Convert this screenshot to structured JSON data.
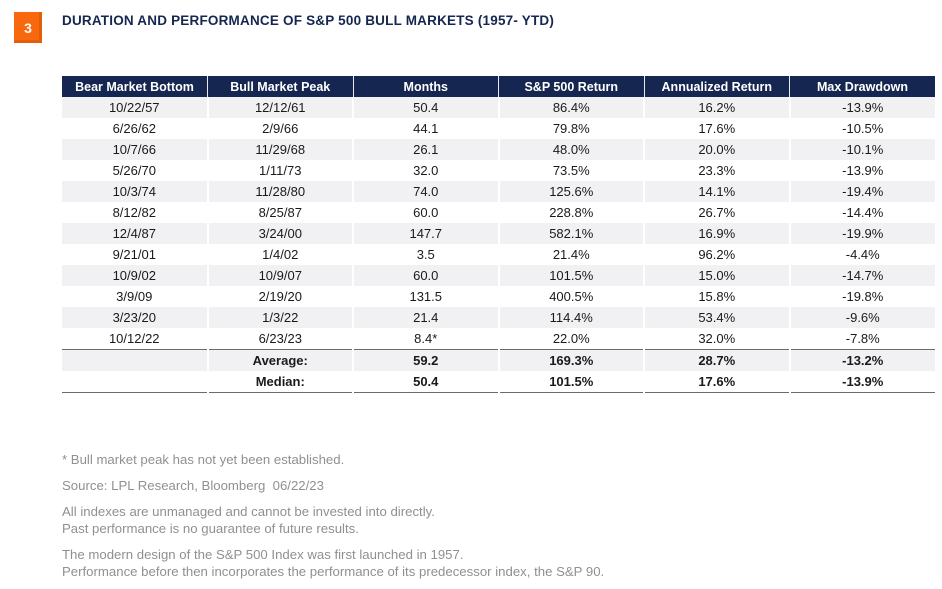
{
  "figure": {
    "badge": "3",
    "title": "DURATION AND PERFORMANCE OF S&P 500 BULL MARKETS (1957- YTD)"
  },
  "chart_data": {
    "type": "table",
    "title": "DURATION AND PERFORMANCE OF S&P 500 BULL MARKETS (1957- YTD)",
    "columns": [
      "Bear Market Bottom",
      "Bull Market Peak",
      "Months",
      "S&P 500 Return",
      "Annualized Return",
      "Max Drawdown"
    ],
    "rows": [
      [
        "10/22/57",
        "12/12/61",
        "50.4",
        "86.4%",
        "16.2%",
        "-13.9%"
      ],
      [
        "6/26/62",
        "2/9/66",
        "44.1",
        "79.8%",
        "17.6%",
        "-10.5%"
      ],
      [
        "10/7/66",
        "11/29/68",
        "26.1",
        "48.0%",
        "20.0%",
        "-10.1%"
      ],
      [
        "5/26/70",
        "1/11/73",
        "32.0",
        "73.5%",
        "23.3%",
        "-13.9%"
      ],
      [
        "10/3/74",
        "11/28/80",
        "74.0",
        "125.6%",
        "14.1%",
        "-19.4%"
      ],
      [
        "8/12/82",
        "8/25/87",
        "60.0",
        "228.8%",
        "26.7%",
        "-14.4%"
      ],
      [
        "12/4/87",
        "3/24/00",
        "147.7",
        "582.1%",
        "16.9%",
        "-19.9%"
      ],
      [
        "9/21/01",
        "1/4/02",
        "3.5",
        "21.4%",
        "96.2%",
        "-4.4%"
      ],
      [
        "10/9/02",
        "10/9/07",
        "60.0",
        "101.5%",
        "15.0%",
        "-14.7%"
      ],
      [
        "3/9/09",
        "2/19/20",
        "131.5",
        "400.5%",
        "15.8%",
        "-19.8%"
      ],
      [
        "3/23/20",
        "1/3/22",
        "21.4",
        "114.4%",
        "53.4%",
        "-9.6%"
      ],
      [
        "10/12/22",
        "6/23/23",
        "8.4*",
        "22.0%",
        "32.0%",
        "-7.8%"
      ]
    ],
    "summary_rows": [
      [
        "",
        "Average:",
        "59.2",
        "169.3%",
        "28.7%",
        "-13.2%"
      ],
      [
        "",
        "Median:",
        "50.4",
        "101.5%",
        "17.6%",
        "-13.9%"
      ]
    ]
  },
  "footnotes": [
    [
      "* Bull market peak has not yet been established."
    ],
    [
      "Source: LPL Research, Bloomberg  06/22/23"
    ],
    [
      "All indexes are unmanaged and cannot be invested into directly.",
      "Past performance is no guarantee of future results."
    ],
    [
      "The modern design of the S&P 500 Index was first launched in 1957.",
      "Performance before then incorporates the performance of its predecessor index, the S&P 90."
    ]
  ],
  "colors": {
    "accent_orange": "#F8690F",
    "header_navy": "#152750",
    "row_alt_gray": "#F1F1F4",
    "summary_rule_gray": "#6A6B6E",
    "footnote_gray": "#8F9094"
  }
}
